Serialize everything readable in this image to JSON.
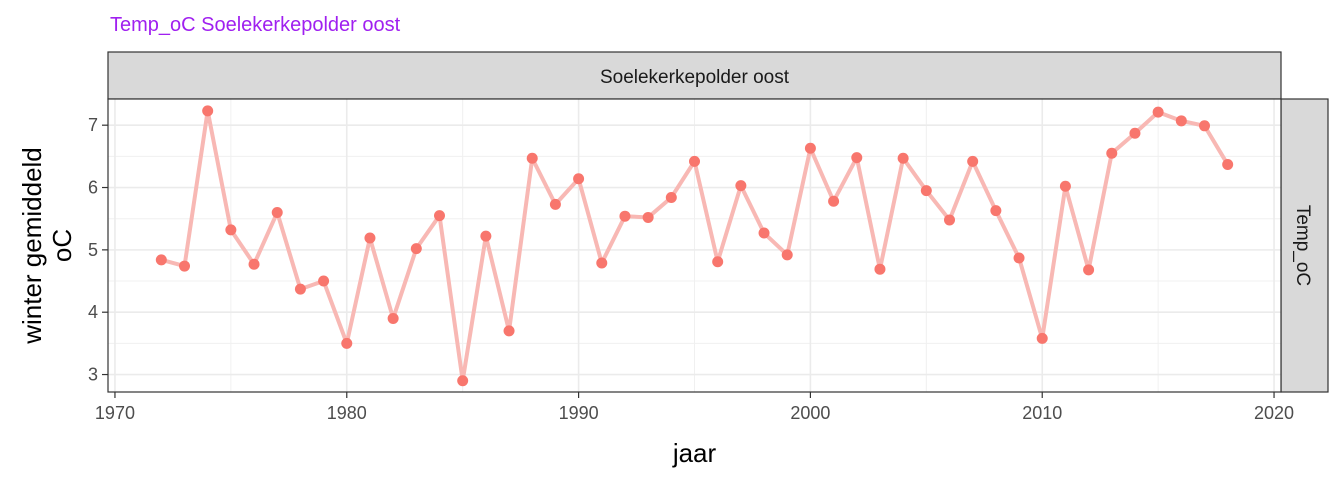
{
  "chart_data": {
    "type": "line",
    "title": "Temp_oC Soelekerkepolder oost",
    "title_color": "#A020F0",
    "facet_top_label": "Soelekerkepolder oost",
    "facet_right_label": "Temp_oC",
    "xlabel": "jaar",
    "ylabel_lines": [
      "winter gemiddeld",
      "oC"
    ],
    "xlim": [
      1969.7,
      2020.3
    ],
    "ylim": [
      2.72,
      7.42
    ],
    "x_ticks": [
      1970,
      1980,
      1990,
      2000,
      2010,
      2020
    ],
    "y_ticks": [
      3,
      4,
      5,
      6,
      7
    ],
    "grid": true,
    "line_color": "#F8B8B4",
    "point_color": "#F8766D",
    "x": [
      1972,
      1973,
      1974,
      1975,
      1976,
      1977,
      1978,
      1979,
      1980,
      1981,
      1982,
      1983,
      1984,
      1985,
      1986,
      1987,
      1988,
      1989,
      1990,
      1991,
      1992,
      1993,
      1994,
      1995,
      1996,
      1997,
      1998,
      1999,
      2000,
      2001,
      2002,
      2003,
      2004,
      2005,
      2006,
      2007,
      2008,
      2009,
      2010,
      2011,
      2012,
      2013,
      2014,
      2015,
      2016,
      2017,
      2018
    ],
    "y": [
      4.84,
      4.74,
      7.23,
      5.32,
      4.77,
      5.6,
      4.37,
      4.5,
      3.5,
      5.19,
      3.9,
      5.02,
      5.55,
      2.9,
      5.22,
      3.7,
      6.47,
      5.73,
      6.14,
      4.79,
      5.54,
      5.52,
      5.84,
      6.42,
      4.81,
      6.03,
      5.27,
      4.92,
      6.63,
      5.78,
      6.48,
      4.69,
      6.47,
      5.95,
      5.48,
      6.42,
      5.63,
      4.87,
      3.58,
      6.02,
      4.68,
      6.55,
      6.87,
      7.21,
      7.07,
      6.99,
      6.37
    ]
  }
}
